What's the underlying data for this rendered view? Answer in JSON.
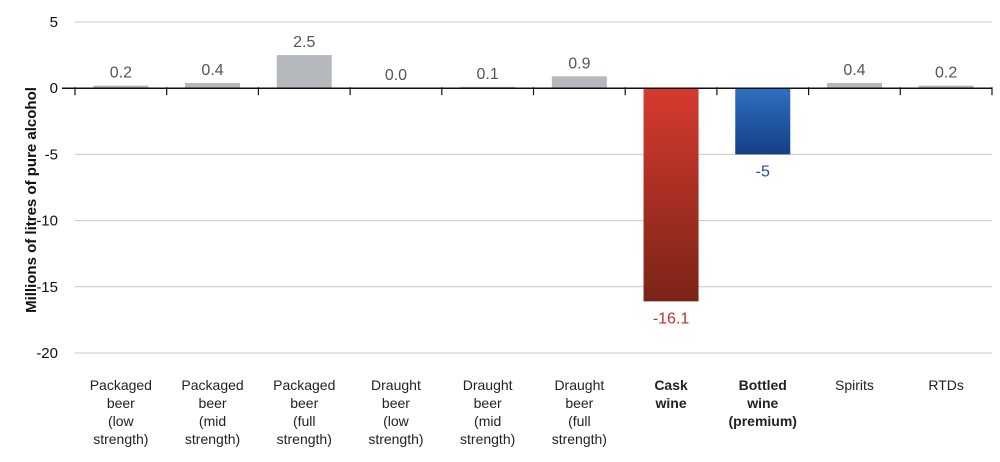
{
  "chart_data": {
    "type": "bar",
    "ylabel": "Millions of litres of pure alcohol",
    "ylim": [
      -20,
      5
    ],
    "yticks": [
      5,
      0,
      -5,
      -10,
      -15,
      -20
    ],
    "grid": true,
    "categories": [
      [
        "Packaged",
        "beer",
        "(low",
        "strength)"
      ],
      [
        "Packaged",
        "beer",
        "(mid",
        "strength)"
      ],
      [
        "Packaged",
        "beer",
        "(full",
        "strength)"
      ],
      [
        "Draught",
        "beer",
        "(low",
        "strength)"
      ],
      [
        "Draught",
        "beer",
        "(mid",
        "strength)"
      ],
      [
        "Draught",
        "beer",
        "(full",
        "strength)"
      ],
      [
        "Cask",
        "wine"
      ],
      [
        "Bottled",
        "wine",
        "(premium)"
      ],
      [
        "Spirits"
      ],
      [
        "RTDs"
      ]
    ],
    "values": [
      0.2,
      0.4,
      2.5,
      0.0,
      0.1,
      0.9,
      -16.1,
      -5,
      0.4,
      0.2
    ],
    "value_labels": [
      "0.2",
      "0.4",
      "2.5",
      "0.0",
      "0.1",
      "0.9",
      "-16.1",
      "-5",
      "0.4",
      "0.2"
    ],
    "colors": {
      "default_bar": "#b5b8bc",
      "cask_wine_top": "#d63a2f",
      "cask_wine_bottom": "#7a2416",
      "cask_wine_text": "#c0302a",
      "bottled_wine_top": "#2f6fc0",
      "bottled_wine_bottom": "#163f86",
      "bottled_wine_text": "#1d4f9c",
      "default_text": "#555555"
    },
    "highlight": [
      6,
      7
    ]
  }
}
